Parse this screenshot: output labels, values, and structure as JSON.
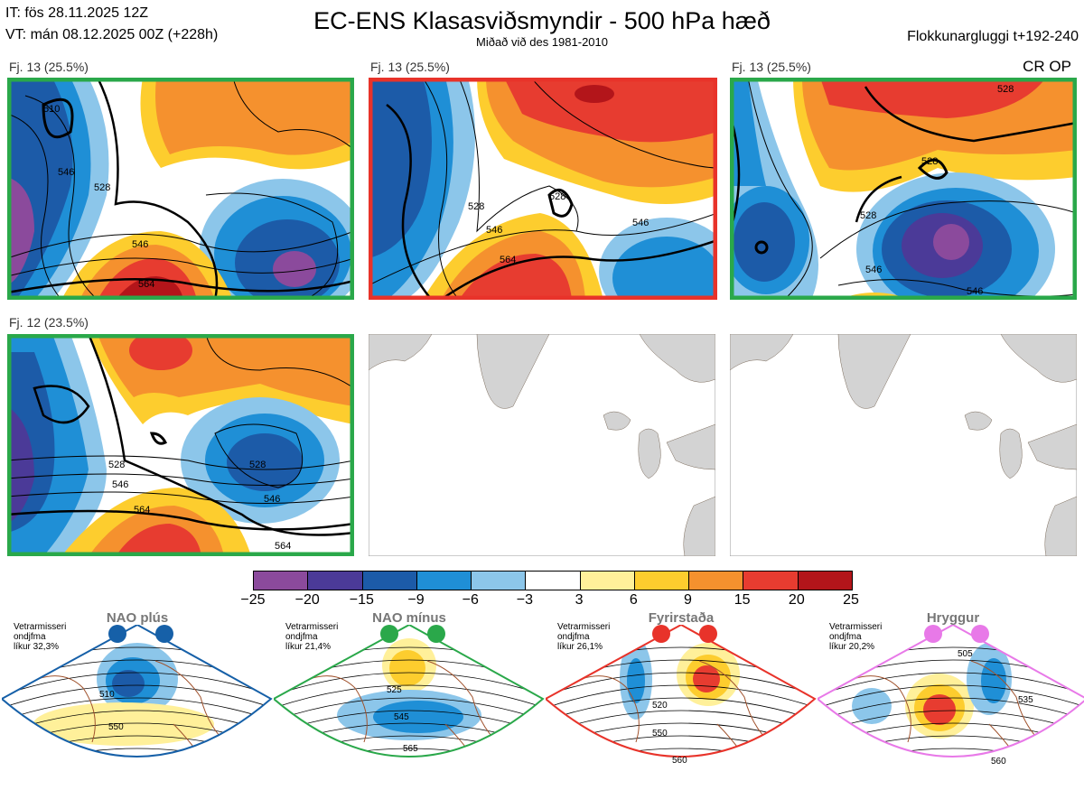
{
  "header": {
    "it_line": "IT: fös 28.11.2025 12Z",
    "vt_line": "VT: mán 08.12.2025 00Z  (+228h)",
    "title": "EC-ENS Klasasviðsmyndir - 500 hPa hæð",
    "subtitle": "Miðað við des 1981-2010",
    "window": "Flokkunargluggi t+192-240",
    "cr_op": "CR OP"
  },
  "panels": [
    {
      "label": "Fj. 13 (25.5%)",
      "border": "#2aa84a",
      "contours": [
        "510",
        "546",
        "528",
        "546",
        "564"
      ]
    },
    {
      "label": "Fj. 13 (25.5%)",
      "border": "#e8332a",
      "contours": [
        "528",
        "528",
        "546",
        "546",
        "564"
      ]
    },
    {
      "label": "Fj. 13 (25.5%)",
      "border": "#2aa84a",
      "contours": [
        "528",
        "528",
        "528",
        "546",
        "546"
      ]
    },
    {
      "label": "Fj. 12 (23.5%)",
      "border": "#2aa84a",
      "contours": [
        "528",
        "546",
        "564",
        "528",
        "546",
        "564"
      ]
    },
    {
      "label": "",
      "border": "#999999",
      "contours": []
    },
    {
      "label": "",
      "border": "#999999",
      "contours": []
    }
  ],
  "colorbar": {
    "colors": [
      "#8b4a9c",
      "#4b3a98",
      "#1c5ba8",
      "#1f8fd6",
      "#8cc6ea",
      "#ffffff",
      "#fff09a",
      "#fdcd2e",
      "#f5912e",
      "#e73c30",
      "#b3151a"
    ],
    "ticks": [
      "−25",
      "−20",
      "−15",
      "−9",
      "−6",
      "−3",
      "3",
      "6",
      "9",
      "15",
      "20",
      "25"
    ]
  },
  "regimes": [
    {
      "name": "NAO plús",
      "color": "#1660a8",
      "note": [
        "Vetrarmisseri",
        "ondjfma",
        "líkur 32,3%"
      ],
      "labels": [
        "510",
        "550"
      ]
    },
    {
      "name": "NAO mínus",
      "color": "#2aa84a",
      "note": [
        "Vetrarmisseri",
        "ondjfma",
        "líkur 21,4%"
      ],
      "labels": [
        "525",
        "545",
        "565"
      ]
    },
    {
      "name": "Fyrirstaða",
      "color": "#e8332a",
      "note": [
        "Vetrarmisseri",
        "ondjfma",
        "líkur 26,1%"
      ],
      "labels": [
        "520",
        "550",
        "560"
      ]
    },
    {
      "name": "Hryggur",
      "color": "#e879e8",
      "note": [
        "Vetrarmisseri",
        "ondjfma",
        "líkur 20,2%"
      ],
      "labels": [
        "505",
        "535",
        "560"
      ]
    }
  ]
}
